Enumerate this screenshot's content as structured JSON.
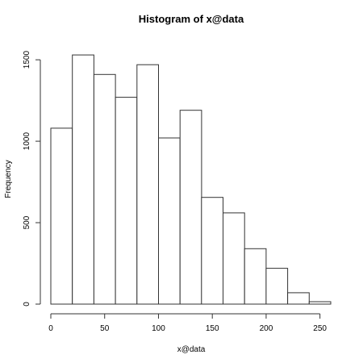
{
  "chart_data": {
    "type": "bar",
    "title": "Histogram of x@data",
    "xlabel": "x@data",
    "ylabel": "Frequency",
    "bin_edges": [
      0,
      20,
      40,
      60,
      80,
      100,
      120,
      140,
      160,
      180,
      200,
      220,
      240,
      260
    ],
    "values": [
      1080,
      1530,
      1410,
      1270,
      1470,
      1020,
      1190,
      655,
      560,
      340,
      220,
      70,
      15
    ],
    "xlim": [
      0,
      260
    ],
    "ylim": [
      0,
      1560
    ],
    "x_ticks": [
      0,
      50,
      100,
      150,
      200,
      250
    ],
    "y_ticks": [
      0,
      500,
      1000,
      1500
    ],
    "grid": false,
    "colors": {
      "bar_fill": "#ffffff",
      "bar_stroke": "#333333"
    }
  }
}
